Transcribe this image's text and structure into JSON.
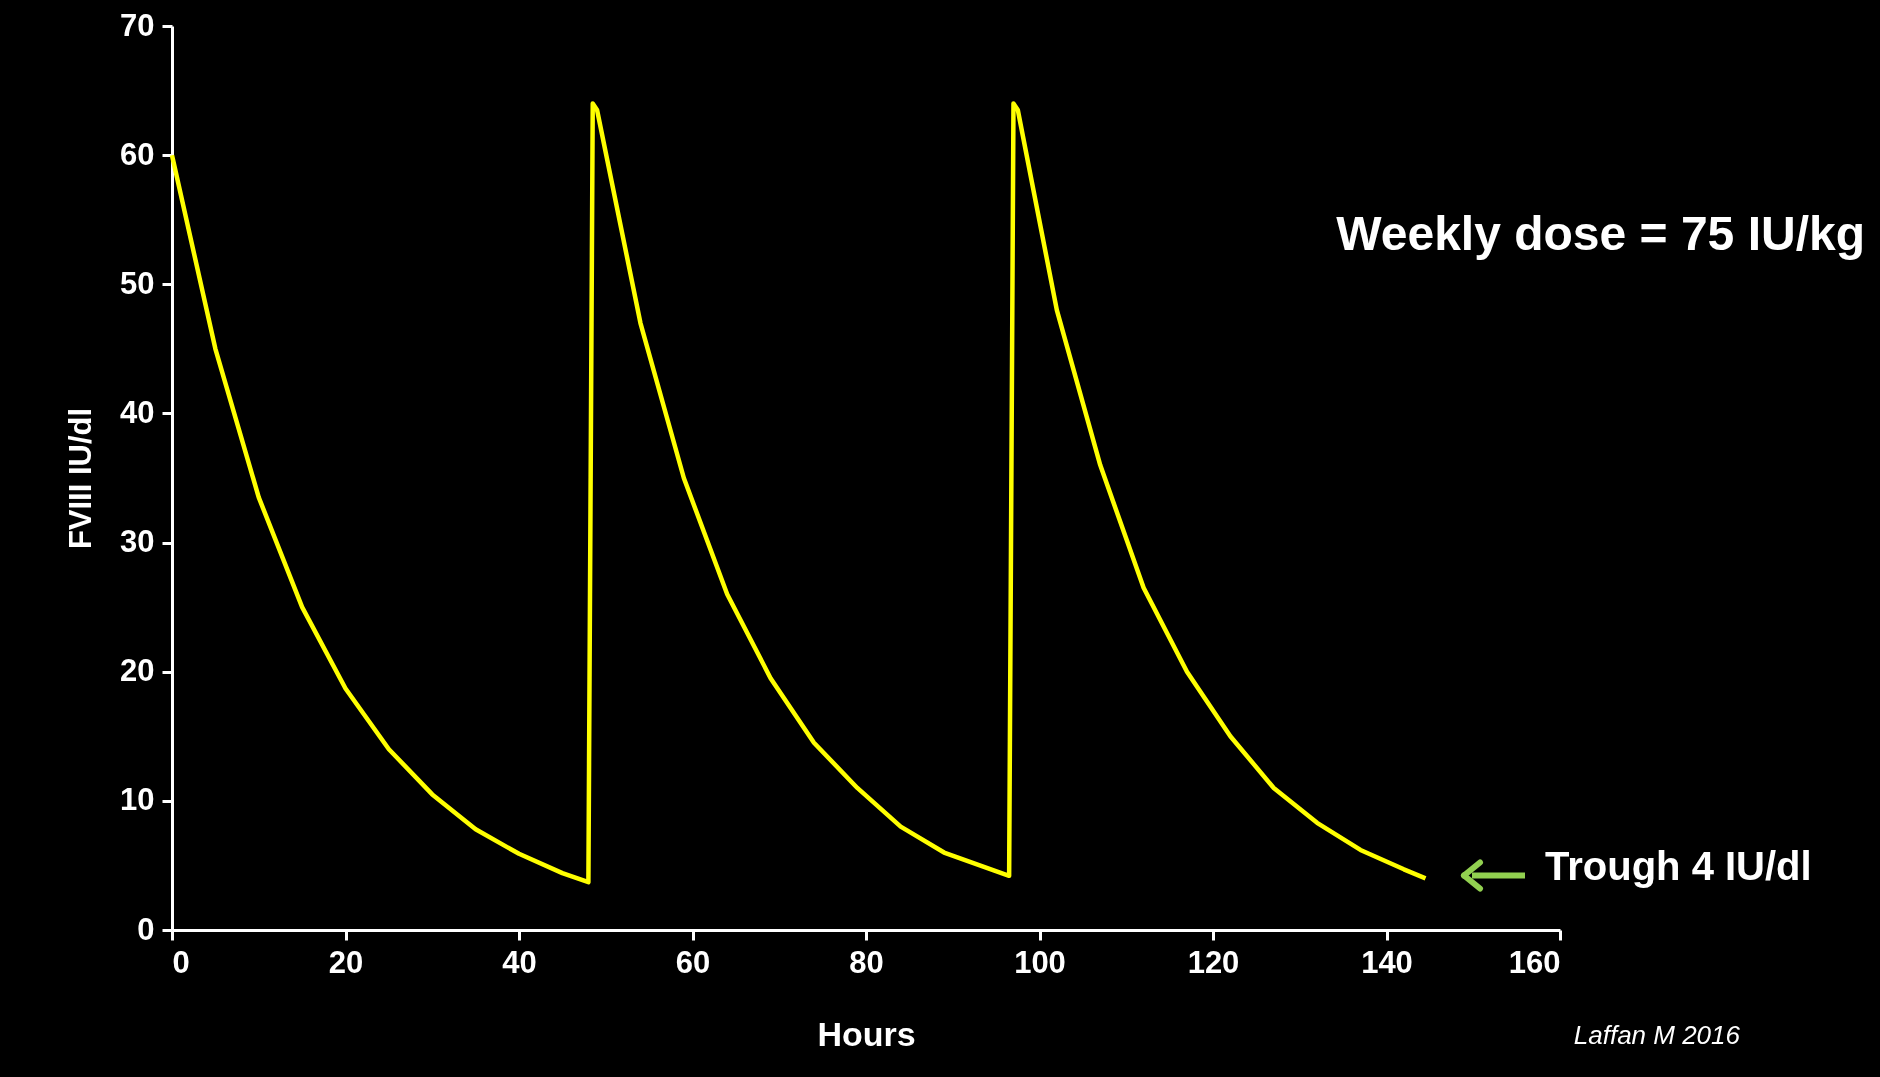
{
  "chart_data": {
    "type": "line",
    "xlabel": "Hours",
    "ylabel": "FVIII IU/dl",
    "xlim": [
      0,
      160
    ],
    "xticks": [
      0,
      20,
      40,
      60,
      80,
      100,
      120,
      140,
      160
    ],
    "ylim": [
      0,
      70
    ],
    "yticks": [
      0,
      10,
      20,
      30,
      40,
      50,
      60,
      70
    ],
    "grid": false,
    "marker": "none",
    "line_style": "solid",
    "series": [
      {
        "color": "#ffff00",
        "x": [
          0,
          5,
          10,
          15,
          20,
          25,
          30,
          35,
          40,
          45,
          48,
          48.5,
          49,
          54,
          59,
          64,
          69,
          74,
          79,
          84,
          89,
          94,
          96.5,
          97,
          97.5,
          102,
          107,
          112,
          117,
          122,
          127,
          132,
          137,
          142,
          144.5
        ],
        "values": [
          60,
          45,
          33.5,
          25,
          18.7,
          14,
          10.5,
          7.8,
          5.9,
          4.4,
          3.7,
          64,
          63.5,
          47,
          35,
          26,
          19.5,
          14.5,
          11,
          8,
          6,
          4.8,
          4.2,
          64,
          63.5,
          48,
          36,
          26.5,
          20,
          15,
          11,
          8.3,
          6.2,
          4.7,
          4
        ]
      }
    ],
    "annotations": [
      "Weekly dose = 75 IU/kg",
      "Trough 4 IU/dl",
      "Laffan M 2016"
    ]
  }
}
